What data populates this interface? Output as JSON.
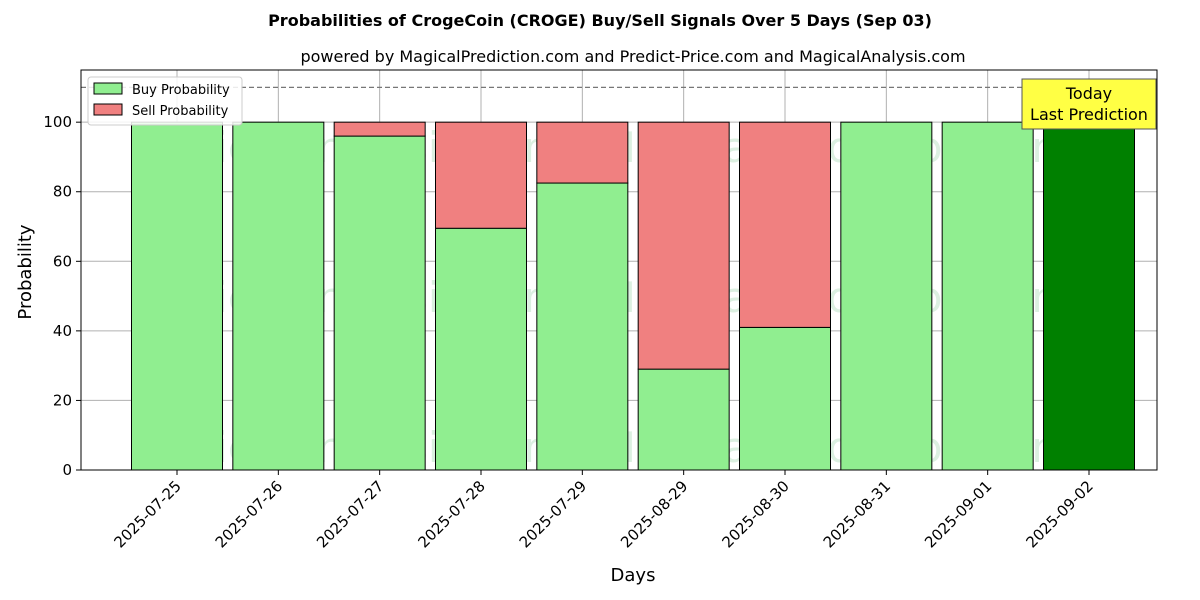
{
  "chart_data": {
    "type": "bar",
    "stacked": true,
    "title": "Probabilities of CrogeCoin (CROGE) Buy/Sell Signals Over 5 Days (Sep 03)",
    "subtitle": "powered by MagicalPrediction.com and Predict-Price.com and MagicalAnalysis.com",
    "xlabel": "Days",
    "ylabel": "Probability",
    "ylim": [
      0,
      115
    ],
    "yticks": [
      0,
      20,
      40,
      60,
      80,
      100
    ],
    "grid": true,
    "legend_position": "top-left",
    "reference_line": 110,
    "categories": [
      "2025-07-25",
      "2025-07-26",
      "2025-07-27",
      "2025-07-28",
      "2025-07-29",
      "2025-08-29",
      "2025-08-30",
      "2025-08-31",
      "2025-09-01",
      "2025-09-02"
    ],
    "series": [
      {
        "name": "Buy Probability",
        "color": "#90ee90",
        "values": [
          100,
          100,
          96,
          69.5,
          82.5,
          29,
          41,
          100,
          100,
          100
        ]
      },
      {
        "name": "Sell Probability",
        "color": "#f08080",
        "values": [
          0,
          0,
          4,
          30.5,
          17.5,
          71,
          59,
          0,
          0,
          0
        ]
      }
    ],
    "highlight": {
      "index": 9,
      "color": "#008000"
    },
    "annotation": {
      "lines": [
        "Today",
        "Last Prediction"
      ],
      "bg": "#ffff44"
    },
    "watermarks": [
      "MagicalAnalysis.com",
      "MagicalPrediction.com"
    ]
  }
}
